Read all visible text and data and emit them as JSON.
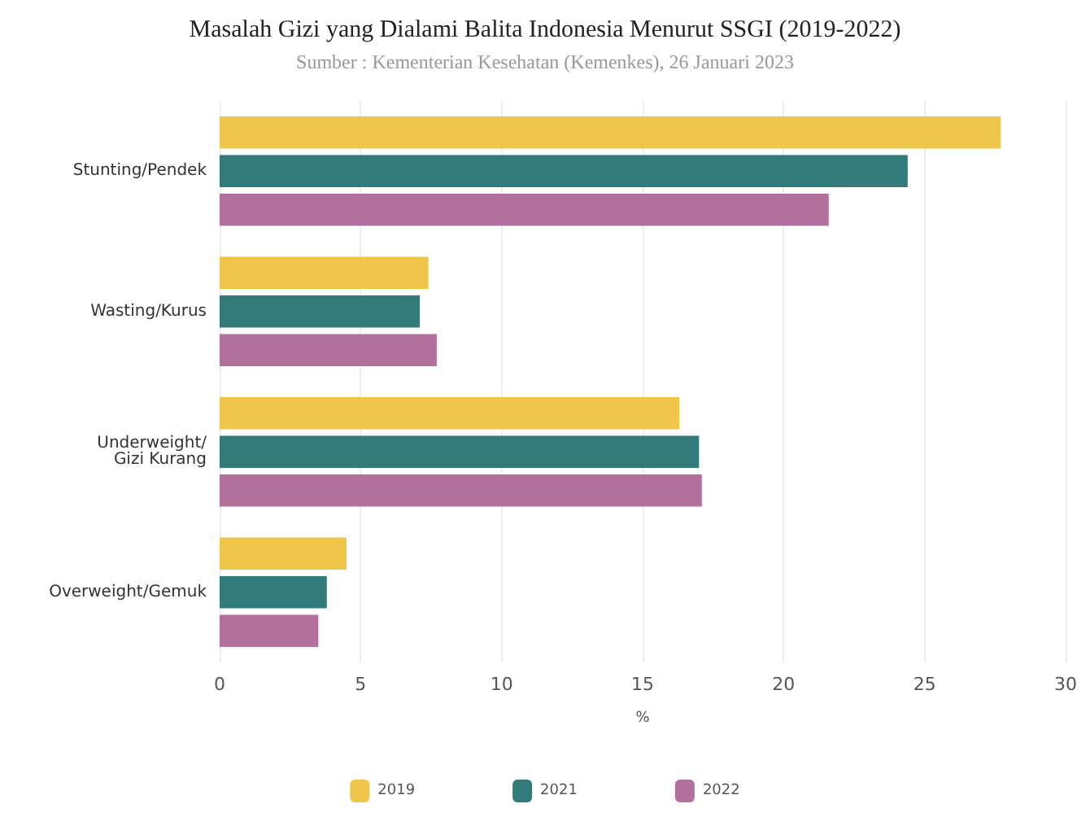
{
  "chart_data": {
    "type": "bar",
    "orientation": "horizontal",
    "title": "Masalah Gizi yang Dialami Balita Indonesia Menurut SSGI (2019-2022)",
    "subtitle": "Sumber : Kementerian Kesehatan (Kemenkes), 26 Januari 2023",
    "xlabel": "%",
    "categories": [
      "Stunting/Pendek",
      "Wasting/Kurus",
      "Underweight/\nGizi Kurang",
      "Overweight/Gemuk"
    ],
    "series": [
      {
        "name": "2019",
        "color": "#f0c64a",
        "values": [
          27.7,
          7.4,
          16.3,
          4.5
        ]
      },
      {
        "name": "2021",
        "color": "#337a7a",
        "values": [
          24.4,
          7.1,
          17.0,
          3.8
        ]
      },
      {
        "name": "2022",
        "color": "#b4709c",
        "values": [
          21.6,
          7.7,
          17.1,
          3.5
        ]
      }
    ],
    "xlim": [
      0,
      30
    ],
    "xticks": [
      0,
      5,
      10,
      15,
      20,
      25,
      30
    ],
    "grid": "x",
    "legend": "bottom"
  }
}
